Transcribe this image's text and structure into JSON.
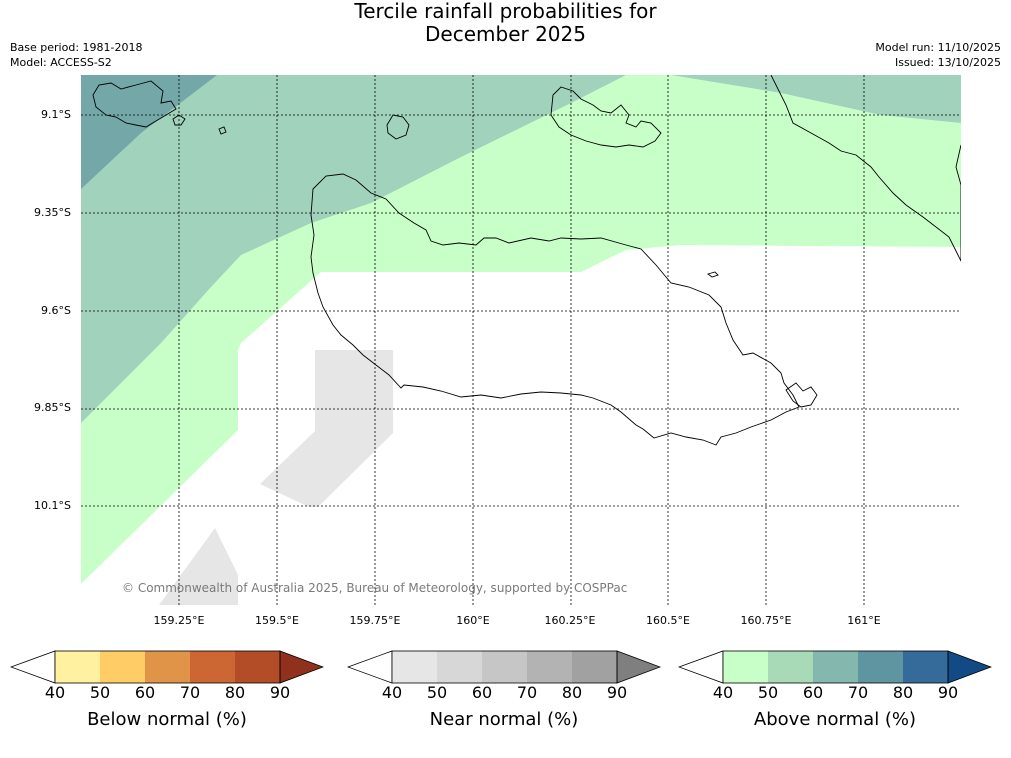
{
  "header": {
    "title_line1": "Tercile rainfall probabilities for",
    "title_line2": "December 2025",
    "base_period": "Base period: 1981-2018",
    "model": "Model: ACCESS-S2",
    "model_run": "Model run: 11/10/2025",
    "issued": "Issued: 13/10/2025"
  },
  "map": {
    "lat_labels": [
      "9.1°S",
      "9.35°S",
      "9.6°S",
      "9.85°S",
      "10.1°S"
    ],
    "lon_labels": [
      "159.25°E",
      "159.5°E",
      "159.75°E",
      "160°E",
      "160.25°E",
      "160.5°E",
      "160.75°E",
      "161°E"
    ],
    "copyright": "© Commonwealth of Australia 2025, Bureau of Meteorology, supported by COSPPac",
    "colors": {
      "above_40_50": "#c8ffc8",
      "above_50_60": "#a0d2bc",
      "above_60_70": "#74a7a8",
      "near_40_50": "#e6e6e6",
      "coast": "#000000"
    }
  },
  "legends": [
    {
      "title": "Below normal (%)",
      "ticks": [
        "40",
        "50",
        "60",
        "70",
        "80",
        "90"
      ],
      "colors": [
        "#fff1a0",
        "#ffcc66",
        "#e09448",
        "#cc6633",
        "#b34d28",
        "#8f311d"
      ]
    },
    {
      "title": "Near normal (%)",
      "ticks": [
        "40",
        "50",
        "60",
        "70",
        "80",
        "90"
      ],
      "colors": [
        "#e6e6e6",
        "#d7d7d7",
        "#c6c6c6",
        "#b3b3b3",
        "#a1a1a1",
        "#7f7f7f"
      ]
    },
    {
      "title": "Above normal (%)",
      "ticks": [
        "40",
        "50",
        "60",
        "70",
        "80",
        "90"
      ],
      "colors": [
        "#c8ffc8",
        "#a8dab8",
        "#84b8ae",
        "#5f95a0",
        "#356b9a",
        "#124a86"
      ]
    }
  ]
}
